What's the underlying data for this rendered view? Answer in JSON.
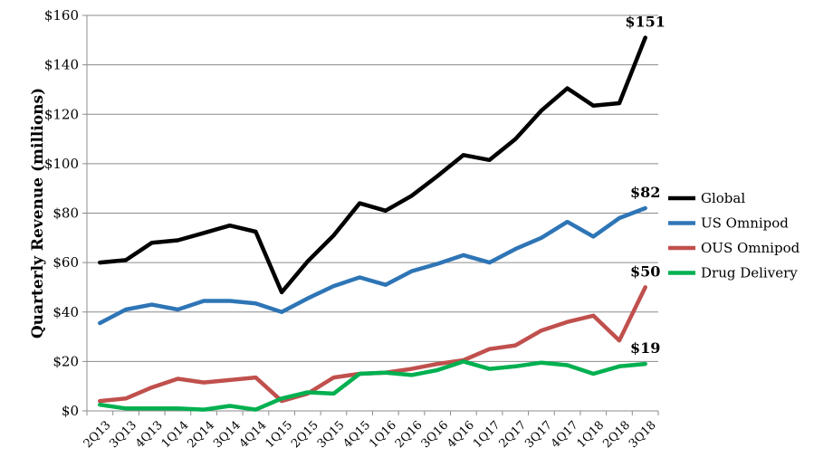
{
  "chart_data": {
    "type": "line",
    "title": "",
    "xlabel": "",
    "ylabel": "Quarterly Revenue (millions)",
    "ylim": [
      0,
      160
    ],
    "yticks": [
      0,
      20,
      40,
      60,
      80,
      100,
      120,
      140,
      160
    ],
    "ytick_labels": [
      "$0",
      "$20",
      "$40",
      "$60",
      "$80",
      "$100",
      "$120",
      "$140",
      "$160"
    ],
    "grid": "horizontal",
    "legend_position": "right",
    "categories": [
      "2Q13",
      "3Q13",
      "4Q13",
      "1Q14",
      "2Q14",
      "3Q14",
      "4Q14",
      "1Q15",
      "2Q15",
      "3Q15",
      "4Q15",
      "1Q16",
      "2Q16",
      "3Q16",
      "4Q16",
      "1Q17",
      "2Q17",
      "3Q17",
      "4Q17",
      "1Q18",
      "2Q18",
      "3Q18"
    ],
    "series": [
      {
        "name": "Global",
        "color": "#000000",
        "end_label": "$151",
        "values": [
          60,
          61,
          68,
          69,
          72,
          75,
          72.5,
          48,
          60.5,
          71,
          84,
          81,
          87,
          95,
          103.5,
          101.5,
          110,
          121.5,
          130.5,
          123.5,
          124.5,
          151
        ]
      },
      {
        "name": "US Omnipod",
        "color": "#2e75b6",
        "end_label": "$82",
        "values": [
          35.5,
          41,
          43,
          41,
          44.5,
          44.5,
          43.5,
          40,
          45.5,
          50.5,
          54,
          51,
          56.5,
          59.5,
          63,
          60,
          65.5,
          70,
          76.5,
          70.5,
          78,
          82
        ]
      },
      {
        "name": "OUS Omnipod",
        "color": "#c0504d",
        "end_label": "$50",
        "values": [
          4,
          5,
          9.5,
          13,
          11.5,
          12.5,
          13.5,
          4,
          7,
          13.5,
          15,
          15.5,
          17,
          19,
          20.5,
          25,
          26.5,
          32.5,
          36,
          38.5,
          28.5,
          50
        ]
      },
      {
        "name": "Drug Delivery",
        "color": "#00b050",
        "end_label": "$19",
        "values": [
          2.5,
          1,
          1,
          1,
          0.5,
          2,
          0.5,
          5,
          7.5,
          7,
          15,
          15.5,
          14.5,
          16.5,
          20,
          17,
          18,
          19.5,
          18.5,
          15,
          18,
          19
        ]
      }
    ]
  }
}
